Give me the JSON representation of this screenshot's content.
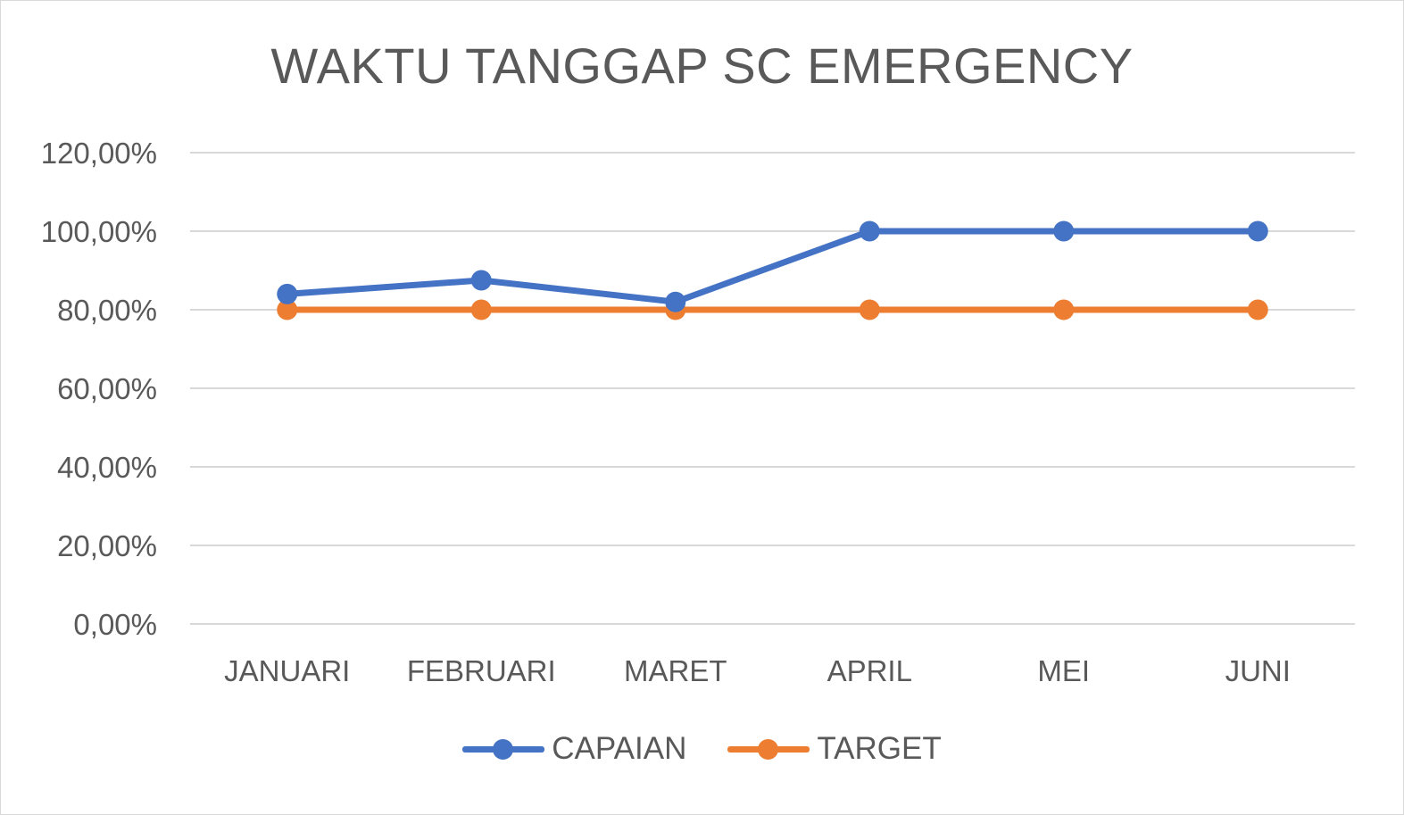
{
  "chart_data": {
    "type": "line",
    "title": "WAKTU TANGGAP SC EMERGENCY",
    "categories": [
      "JANUARI",
      "FEBRUARI",
      "MARET",
      "APRIL",
      "MEI",
      "JUNI"
    ],
    "ylim": [
      0,
      120
    ],
    "yticks": [
      0,
      20,
      40,
      60,
      80,
      100,
      120
    ],
    "ytick_labels": [
      "0,00%",
      "20,00%",
      "40,00%",
      "60,00%",
      "80,00%",
      "100,00%",
      "120,00%"
    ],
    "grid": true,
    "legend_position": "bottom",
    "series": [
      {
        "name": "CAPAIAN",
        "color": "#4472c4",
        "values": [
          84,
          87.5,
          82,
          100,
          100,
          100
        ]
      },
      {
        "name": "TARGET",
        "color": "#ed7d31",
        "values": [
          80,
          80,
          80,
          80,
          80,
          80
        ]
      }
    ]
  }
}
